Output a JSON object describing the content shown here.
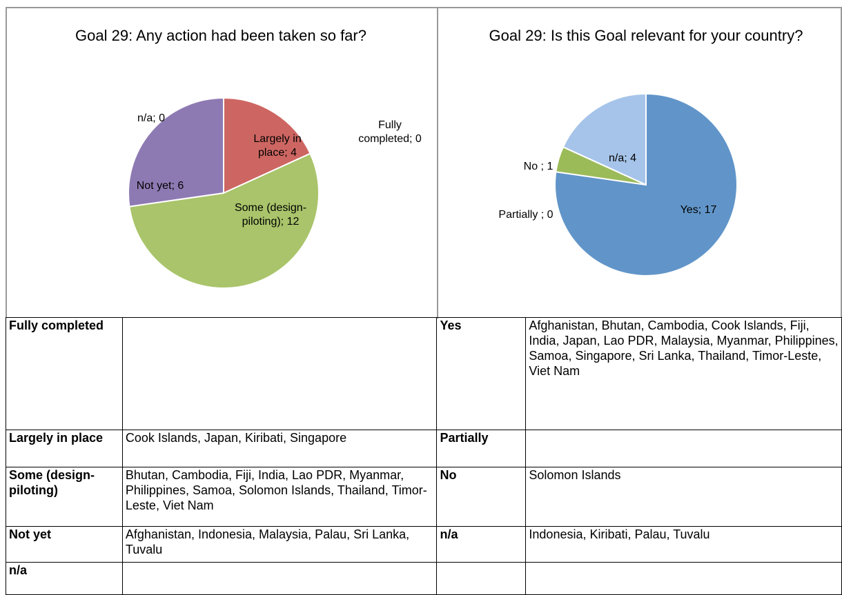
{
  "chart_data": [
    {
      "type": "pie",
      "title": "Goal 29: Any action had been taken so far?",
      "categories": [
        "Fully completed",
        "Largely in place",
        "Some (design-piloting)",
        "Not yet",
        "n/a"
      ],
      "values": [
        0,
        4,
        12,
        6,
        0
      ],
      "value_labels": [
        "Fully completed; 0",
        "Largely in place; 4",
        "Some (design-piloting); 12",
        "Not yet; 6",
        "n/a; 0"
      ],
      "colors": [
        "#4f81bd",
        "#cd6662",
        "#a9c46a",
        "#8e7ab3",
        "#4bacc6"
      ]
    },
    {
      "type": "pie",
      "title": "Goal 29: Is this Goal relevant for your country?",
      "categories": [
        "Yes",
        "Partially",
        "No",
        "n/a"
      ],
      "values": [
        17,
        0,
        1,
        4
      ],
      "value_labels": [
        "Yes; 17",
        "Partially ; 0",
        "No ; 1",
        "n/a; 4"
      ],
      "colors": [
        "#6195c9",
        "#c0504d",
        "#9bbb59",
        "#a6c4e9"
      ]
    }
  ],
  "table": {
    "left": [
      null,
      "Cook Islands, Japan, Kiribati, Singapore",
      "Bhutan, Cambodia, Fiji, India, Lao PDR, Myanmar, Philippines, Samoa, Solomon Islands, Thailand, Timor-Leste, Viet Nam",
      "Afghanistan, Indonesia, Malaysia, Palau, Sri Lanka, Tuvalu",
      null
    ],
    "right": [
      "Afghanistan, Bhutan, Cambodia, Cook Islands, Fiji, India, Japan, Lao PDR, Malaysia, Myanmar, Philippines, Samoa, Singapore, Sri Lanka, Thailand, Timor-Leste, Viet Nam",
      null,
      "Solomon Islands",
      "Indonesia, Kiribati, Palau, Tuvalu"
    ]
  }
}
